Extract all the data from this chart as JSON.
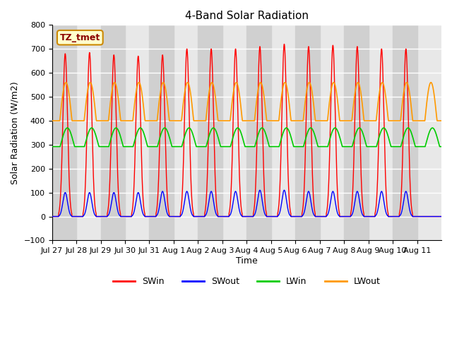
{
  "title": "4-Band Solar Radiation",
  "xlabel": "Time",
  "ylabel": "Solar Radiation (W/m2)",
  "ylim": [
    -100,
    800
  ],
  "yticks": [
    -100,
    0,
    100,
    200,
    300,
    400,
    500,
    600,
    700,
    800
  ],
  "xtick_labels": [
    "Jul 27",
    "Jul 28",
    "Jul 29",
    "Jul 30",
    "Jul 31",
    "Aug 1",
    "Aug 2",
    "Aug 3",
    "Aug 4",
    "Aug 5",
    "Aug 6",
    "Aug 7",
    "Aug 8",
    "Aug 9",
    "Aug 10",
    "Aug 11"
  ],
  "annotation_box": "TZ_tmet",
  "legend_entries": [
    "SWin",
    "SWout",
    "LWin",
    "LWout"
  ],
  "legend_colors": [
    "#ff0000",
    "#0000ff",
    "#00cc00",
    "#ff9900"
  ],
  "background_color": "#ffffff",
  "plot_bg_color": "#e8e8e8",
  "band_color": "#d0d0d0",
  "grid_color": "#ffffff",
  "n_days": 16,
  "SWin_peaks": [
    680,
    685,
    675,
    670,
    675,
    700,
    700,
    700,
    710,
    720,
    710,
    715,
    710,
    700,
    700,
    0
  ],
  "SWout_peaks": [
    100,
    100,
    100,
    100,
    105,
    105,
    105,
    105,
    110,
    110,
    105,
    105,
    105,
    105,
    105,
    0
  ],
  "LWin_base": 300,
  "LWout_base": 400
}
